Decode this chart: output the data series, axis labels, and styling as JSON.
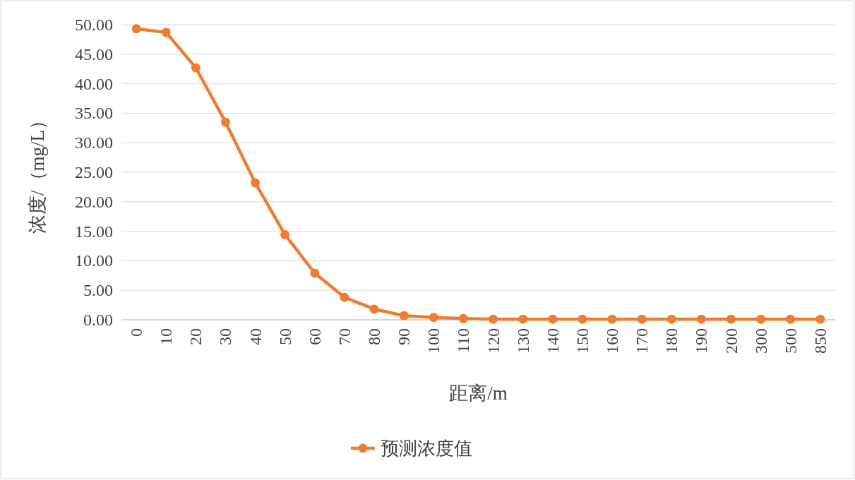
{
  "chart_data": {
    "type": "line",
    "xlabel": "距离/m",
    "ylabel": "浓度/（mg/L）",
    "categories": [
      "0",
      "10",
      "20",
      "30",
      "40",
      "50",
      "60",
      "70",
      "80",
      "90",
      "100",
      "110",
      "120",
      "130",
      "140",
      "150",
      "160",
      "170",
      "180",
      "190",
      "200",
      "300",
      "500",
      "850"
    ],
    "series": [
      {
        "name": "预测浓度值",
        "color": "#ed7d31",
        "values": [
          49.3,
          48.7,
          42.7,
          33.5,
          23.2,
          14.4,
          7.9,
          3.8,
          1.8,
          0.7,
          0.4,
          0.2,
          0.1,
          0.1,
          0.1,
          0.1,
          0.1,
          0.1,
          0.1,
          0.1,
          0.1,
          0.1,
          0.1,
          0.1
        ]
      }
    ],
    "ylim": [
      0,
      50
    ],
    "yticks": [
      {
        "value": 0,
        "label": "0.00"
      },
      {
        "value": 5,
        "label": "5.00"
      },
      {
        "value": 10,
        "label": "10.00"
      },
      {
        "value": 15,
        "label": "15.00"
      },
      {
        "value": 20,
        "label": "20.00"
      },
      {
        "value": 25,
        "label": "25.00"
      },
      {
        "value": 30,
        "label": "30.00"
      },
      {
        "value": 35,
        "label": "35.00"
      },
      {
        "value": 40,
        "label": "40.00"
      },
      {
        "value": 45,
        "label": "45.00"
      },
      {
        "value": 50,
        "label": "50.00"
      }
    ],
    "grid": "y",
    "legend": "bottom",
    "marker": "circle",
    "line_style": "solid"
  }
}
